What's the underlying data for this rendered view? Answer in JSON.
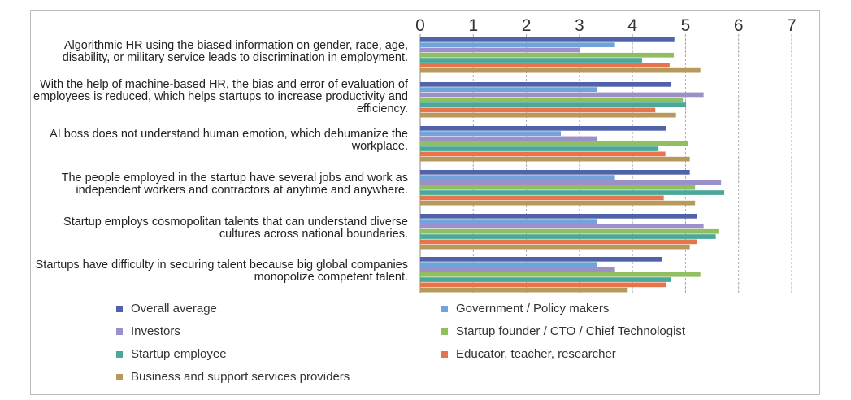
{
  "chart_data": {
    "type": "bar",
    "orientation": "horizontal",
    "categories": [
      "Algorithmic HR using the biased information on gender, race, age, disability, or military service leads to discrimination in employment.",
      "With the help of machine-based HR, the bias and error of evaluation of employees is reduced, which helps startups to increase productivity and efficiency.",
      "AI boss does not understand human emotion, which dehumanize the workplace.",
      "The people employed in the startup have several jobs and work as independent workers and contractors at anytime and anywhere.",
      "Startup employs cosmopolitan talents that can understand diverse cultures across national boundaries.",
      "Startups have difficulty in securing talent because big global companies monopolize competent talent."
    ],
    "series": [
      {
        "name": "Overall average",
        "color": "#5062a8",
        "values": [
          4.79,
          4.72,
          4.64,
          5.08,
          5.21,
          4.56
        ]
      },
      {
        "name": "Government / Policy makers",
        "color": "#6fa3d9",
        "values": [
          3.67,
          3.34,
          2.65,
          3.67,
          3.34,
          3.34
        ]
      },
      {
        "name": "Investors",
        "color": "#9c90c9",
        "values": [
          3.0,
          5.34,
          3.34,
          5.67,
          5.34,
          3.67
        ]
      },
      {
        "name": "Startup founder / CTO / Chief Technologist",
        "color": "#8fbf5e",
        "values": [
          4.78,
          4.95,
          5.04,
          5.18,
          5.62,
          5.28
        ]
      },
      {
        "name": "Startup employee",
        "color": "#4aa89b",
        "values": [
          4.18,
          5.01,
          4.49,
          5.73,
          5.57,
          4.73
        ]
      },
      {
        "name": "Educator, teacher, researcher",
        "color": "#e8744b",
        "values": [
          4.7,
          4.43,
          4.62,
          4.59,
          5.21,
          4.64
        ]
      },
      {
        "name": "Business and support services providers",
        "color": "#b8995c",
        "values": [
          5.28,
          4.82,
          5.08,
          5.18,
          5.08,
          3.91
        ]
      }
    ],
    "xlim": [
      0,
      7
    ],
    "xticks": [
      0,
      1,
      2,
      3,
      4,
      5,
      6,
      7
    ],
    "grid": true
  }
}
